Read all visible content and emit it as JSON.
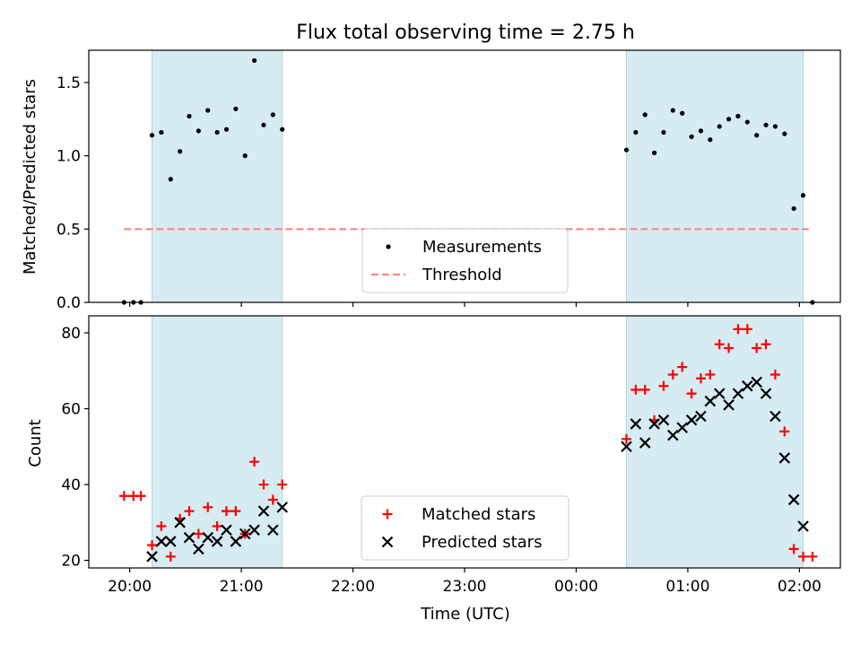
{
  "chart_data": [
    {
      "type": "scatter",
      "title": "Flux total observing time = 2.75 h",
      "xlabel": "",
      "ylabel": "Matched/Predicted stars",
      "ylim": [
        0,
        1.72
      ],
      "yticks": [
        "0.0",
        "0.5",
        "1.0",
        "1.5"
      ],
      "ytick_values": [
        0,
        0.5,
        1.0,
        1.5
      ],
      "grid": false,
      "legend": "lower center",
      "shaded_intervals": [
        [
          "20:12",
          "21:22"
        ],
        [
          "00:27",
          "02:02"
        ]
      ],
      "threshold": {
        "name": "Threshold",
        "value": 0.5,
        "x_start": "19:57",
        "x_end": "02:05",
        "color": "#ff7f7f"
      },
      "series": [
        {
          "name": "Measurements",
          "color": "#000000",
          "marker": "dot",
          "points": [
            [
              "19:57",
              0.0
            ],
            [
              "20:02",
              0.0
            ],
            [
              "20:06",
              0.0
            ],
            [
              "20:12",
              1.14
            ],
            [
              "20:17",
              1.16
            ],
            [
              "20:22",
              0.84
            ],
            [
              "20:27",
              1.03
            ],
            [
              "20:32",
              1.27
            ],
            [
              "20:37",
              1.17
            ],
            [
              "20:42",
              1.31
            ],
            [
              "20:47",
              1.16
            ],
            [
              "20:52",
              1.18
            ],
            [
              "20:57",
              1.32
            ],
            [
              "21:02",
              1.0
            ],
            [
              "21:07",
              1.65
            ],
            [
              "21:12",
              1.21
            ],
            [
              "21:17",
              1.28
            ],
            [
              "21:22",
              1.18
            ],
            [
              "00:27",
              1.04
            ],
            [
              "00:32",
              1.16
            ],
            [
              "00:37",
              1.28
            ],
            [
              "00:42",
              1.02
            ],
            [
              "00:47",
              1.16
            ],
            [
              "00:52",
              1.31
            ],
            [
              "00:57",
              1.29
            ],
            [
              "01:02",
              1.13
            ],
            [
              "01:07",
              1.17
            ],
            [
              "01:12",
              1.11
            ],
            [
              "01:17",
              1.2
            ],
            [
              "01:22",
              1.25
            ],
            [
              "01:27",
              1.27
            ],
            [
              "01:32",
              1.23
            ],
            [
              "01:37",
              1.14
            ],
            [
              "01:42",
              1.21
            ],
            [
              "01:47",
              1.2
            ],
            [
              "01:52",
              1.15
            ],
            [
              "01:57",
              0.64
            ],
            [
              "02:02",
              0.73
            ],
            [
              "02:07",
              0.0
            ]
          ]
        }
      ]
    },
    {
      "type": "scatter",
      "title": "",
      "xlabel": "Time (UTC)",
      "ylabel": "Count",
      "ylim": [
        18,
        84.5
      ],
      "yticks": [
        "20",
        "40",
        "60",
        "80"
      ],
      "ytick_values": [
        20,
        40,
        60,
        80
      ],
      "xlim": [
        "19:38",
        "02:22"
      ],
      "xticks": [
        "20:00",
        "21:00",
        "22:00",
        "23:00",
        "00:00",
        "01:00",
        "02:00"
      ],
      "grid": false,
      "legend": "lower center",
      "shaded_intervals": [
        [
          "20:12",
          "21:22"
        ],
        [
          "00:27",
          "02:02"
        ]
      ],
      "series": [
        {
          "name": "Matched stars",
          "color": "#ff0000",
          "marker": "plus",
          "points": [
            [
              "19:57",
              37
            ],
            [
              "20:02",
              37
            ],
            [
              "20:06",
              37
            ],
            [
              "20:12",
              24
            ],
            [
              "20:17",
              29
            ],
            [
              "20:22",
              21
            ],
            [
              "20:27",
              31
            ],
            [
              "20:32",
              33
            ],
            [
              "20:37",
              27
            ],
            [
              "20:42",
              34
            ],
            [
              "20:47",
              29
            ],
            [
              "20:52",
              33
            ],
            [
              "20:57",
              33
            ],
            [
              "21:02",
              27
            ],
            [
              "21:07",
              46
            ],
            [
              "21:12",
              40
            ],
            [
              "21:17",
              36
            ],
            [
              "21:22",
              40
            ],
            [
              "00:27",
              52
            ],
            [
              "00:32",
              65
            ],
            [
              "00:37",
              65
            ],
            [
              "00:42",
              57
            ],
            [
              "00:47",
              66
            ],
            [
              "00:52",
              69
            ],
            [
              "00:57",
              71
            ],
            [
              "01:02",
              64
            ],
            [
              "01:07",
              68
            ],
            [
              "01:12",
              69
            ],
            [
              "01:17",
              77
            ],
            [
              "01:22",
              76
            ],
            [
              "01:27",
              81
            ],
            [
              "01:32",
              81
            ],
            [
              "01:37",
              76
            ],
            [
              "01:42",
              77
            ],
            [
              "01:47",
              69
            ],
            [
              "01:52",
              54
            ],
            [
              "01:57",
              23
            ],
            [
              "02:02",
              21
            ],
            [
              "02:07",
              21
            ]
          ]
        },
        {
          "name": "Predicted stars",
          "color": "#000000",
          "marker": "x",
          "points": [
            [
              "20:12",
              21
            ],
            [
              "20:17",
              25
            ],
            [
              "20:22",
              25
            ],
            [
              "20:27",
              30
            ],
            [
              "20:32",
              26
            ],
            [
              "20:37",
              23
            ],
            [
              "20:42",
              26
            ],
            [
              "20:47",
              25
            ],
            [
              "20:52",
              28
            ],
            [
              "20:57",
              25
            ],
            [
              "21:02",
              27
            ],
            [
              "21:07",
              28
            ],
            [
              "21:12",
              33
            ],
            [
              "21:17",
              28
            ],
            [
              "21:22",
              34
            ],
            [
              "00:27",
              50
            ],
            [
              "00:32",
              56
            ],
            [
              "00:37",
              51
            ],
            [
              "00:42",
              56
            ],
            [
              "00:47",
              57
            ],
            [
              "00:52",
              53
            ],
            [
              "00:57",
              55
            ],
            [
              "01:02",
              57
            ],
            [
              "01:07",
              58
            ],
            [
              "01:12",
              62
            ],
            [
              "01:17",
              64
            ],
            [
              "01:22",
              61
            ],
            [
              "01:27",
              64
            ],
            [
              "01:32",
              66
            ],
            [
              "01:37",
              67
            ],
            [
              "01:42",
              64
            ],
            [
              "01:47",
              58
            ],
            [
              "01:52",
              47
            ],
            [
              "01:57",
              36
            ],
            [
              "02:02",
              29
            ]
          ]
        }
      ]
    }
  ]
}
